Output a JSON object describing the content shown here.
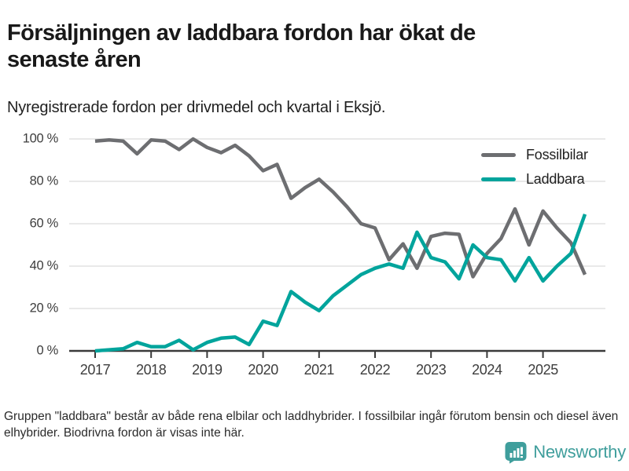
{
  "header": {
    "title": "Försäljningen av laddbara fordon har ökat de senaste åren",
    "subtitle": "Nyregistrerade fordon per drivmedel och kvartal i Eksjö."
  },
  "chart_data": {
    "type": "line",
    "title": "Nyregistrerade fordon per drivmedel och kvartal i Eksjö",
    "x_unit": "quarter",
    "x_start": "2017 Q1",
    "x_end": "2025 Q4",
    "x_quarters": [
      "2017Q1",
      "2017Q2",
      "2017Q3",
      "2017Q4",
      "2018Q1",
      "2018Q2",
      "2018Q3",
      "2018Q4",
      "2019Q1",
      "2019Q2",
      "2019Q3",
      "2019Q4",
      "2020Q1",
      "2020Q2",
      "2020Q3",
      "2020Q4",
      "2021Q1",
      "2021Q2",
      "2021Q3",
      "2021Q4",
      "2022Q1",
      "2022Q2",
      "2022Q3",
      "2022Q4",
      "2023Q1",
      "2023Q2",
      "2023Q3",
      "2023Q4",
      "2024Q1",
      "2024Q2",
      "2024Q3",
      "2024Q4",
      "2025Q1",
      "2025Q2",
      "2025Q3",
      "2025Q4"
    ],
    "xticks": [
      "2017",
      "2018",
      "2019",
      "2020",
      "2021",
      "2022",
      "2023",
      "2024",
      "2025"
    ],
    "yticks": [
      "100 %",
      "80 %",
      "60 %",
      "40 %",
      "20 %",
      "0 %"
    ],
    "ylabel": "",
    "xlabel": "",
    "ylim": [
      0,
      100
    ],
    "grid": "horizontal",
    "legend_position": "top-right",
    "series": [
      {
        "name": "Fossilbilar",
        "color": "#6d6e71",
        "values": [
          99,
          99.5,
          99,
          93,
          99.5,
          99,
          95,
          100,
          96,
          93.5,
          97,
          92,
          85,
          88,
          72,
          77,
          81,
          75,
          68,
          60,
          58,
          43,
          50.5,
          39,
          54,
          55.5,
          55,
          35,
          46,
          53,
          67,
          50,
          66,
          58,
          51,
          36
        ]
      },
      {
        "name": "Laddbara",
        "color": "#00a49c",
        "values": [
          0,
          0.5,
          1,
          4,
          2,
          2,
          5,
          0.5,
          4,
          6,
          6.5,
          3,
          14,
          12,
          28,
          23,
          19,
          26,
          31,
          36,
          39,
          41,
          39,
          56,
          44,
          42,
          34,
          50,
          44,
          43,
          33,
          44,
          33,
          40,
          46,
          64.5
        ]
      }
    ]
  },
  "footer": {
    "note": "Gruppen \"laddbara\" består av både rena elbilar och laddhybrider. I fossilbilar ingår förutom bensin och diesel även elhybrider. Biodrivna fordon är visas inte här.",
    "brand": "Newsworthy",
    "brand_color": "#3f9e9c",
    "logo_icon": "bar-chart-speech-bubble"
  },
  "colors": {
    "fossil_line": "#6d6e71",
    "laddbara_line": "#00a49c",
    "gridline": "#e2e2e2",
    "axis": "#3a3a3a"
  }
}
